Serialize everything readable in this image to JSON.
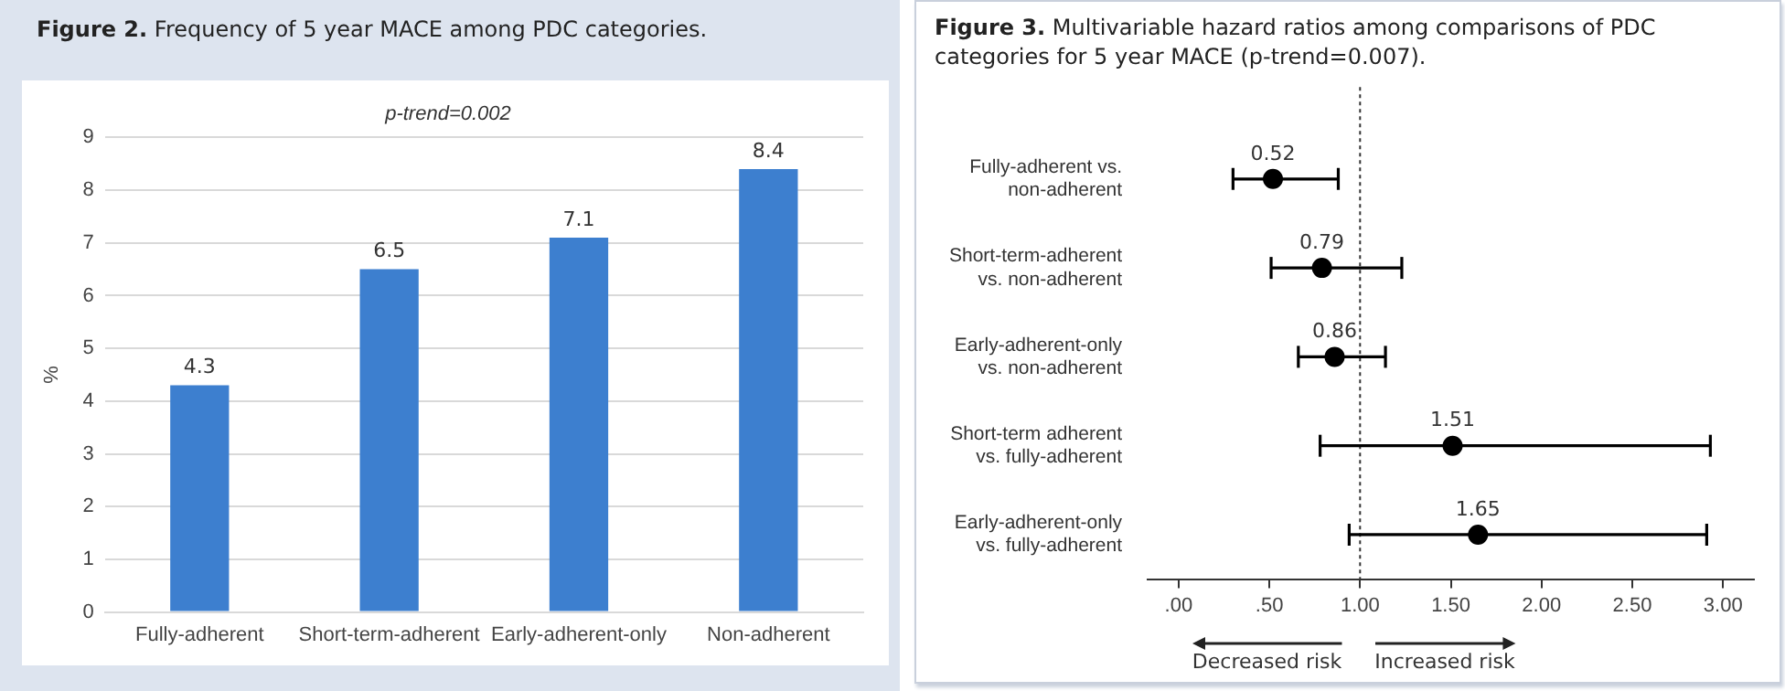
{
  "chart_data": [
    {
      "type": "bar",
      "title": "Figure 2. Frequency of 5 year MACE among PDC categories.",
      "subtitle": "p-trend=0.002",
      "ylabel": "%",
      "categories": [
        "Fully-adherent",
        "Short-term-adherent",
        "Early-adherent-only",
        "Non-adherent"
      ],
      "values": [
        4.3,
        6.5,
        7.1,
        8.4
      ],
      "color": "#3d7fcf",
      "ylim": [
        0,
        9
      ],
      "yticks": [
        0,
        1,
        2,
        3,
        4,
        5,
        6,
        7,
        8,
        9
      ],
      "grid": "y",
      "data_labels": true
    },
    {
      "type": "scatter",
      "orientation": "horizontal",
      "title": "Figure 3. Multivariable hazard ratios among comparisons of PDC categories for 5 year MACE (p-trend=0.007).",
      "categories": [
        "Fully-adherent vs. non-adherent",
        "Short-term-adherent vs. non-adherent",
        "Early-adherent-only vs. non-adherent",
        "Short-term adherent vs. fully-adherent",
        "Early-adherent-only vs. fully-adherent"
      ],
      "values": [
        0.52,
        0.79,
        0.86,
        1.51,
        1.65
      ],
      "color": "#000000",
      "marker": "circle",
      "errors": [
        [
          0.3,
          0.88
        ],
        [
          0.51,
          1.23
        ],
        [
          0.66,
          1.14
        ],
        [
          0.78,
          2.93
        ],
        [
          0.94,
          2.91
        ]
      ],
      "xlim": [
        -0.17,
        3.17
      ],
      "xticks": [
        {
          "value": 0,
          "label": ".00"
        },
        {
          "value": 0.5,
          "label": ".50"
        },
        {
          "value": 1,
          "label": "1.00"
        },
        {
          "value": 1.5,
          "label": "1.50"
        },
        {
          "value": 2,
          "label": "2.00"
        },
        {
          "value": 2.5,
          "label": "2.50"
        },
        {
          "value": 3,
          "label": "3.00"
        }
      ],
      "ref_lines": [
        {
          "axis": "x",
          "value": 1,
          "line_style": "dotted"
        }
      ],
      "annotations": [
        "Decreased risk",
        "Increased risk"
      ],
      "grid": false,
      "data_labels": true
    }
  ]
}
